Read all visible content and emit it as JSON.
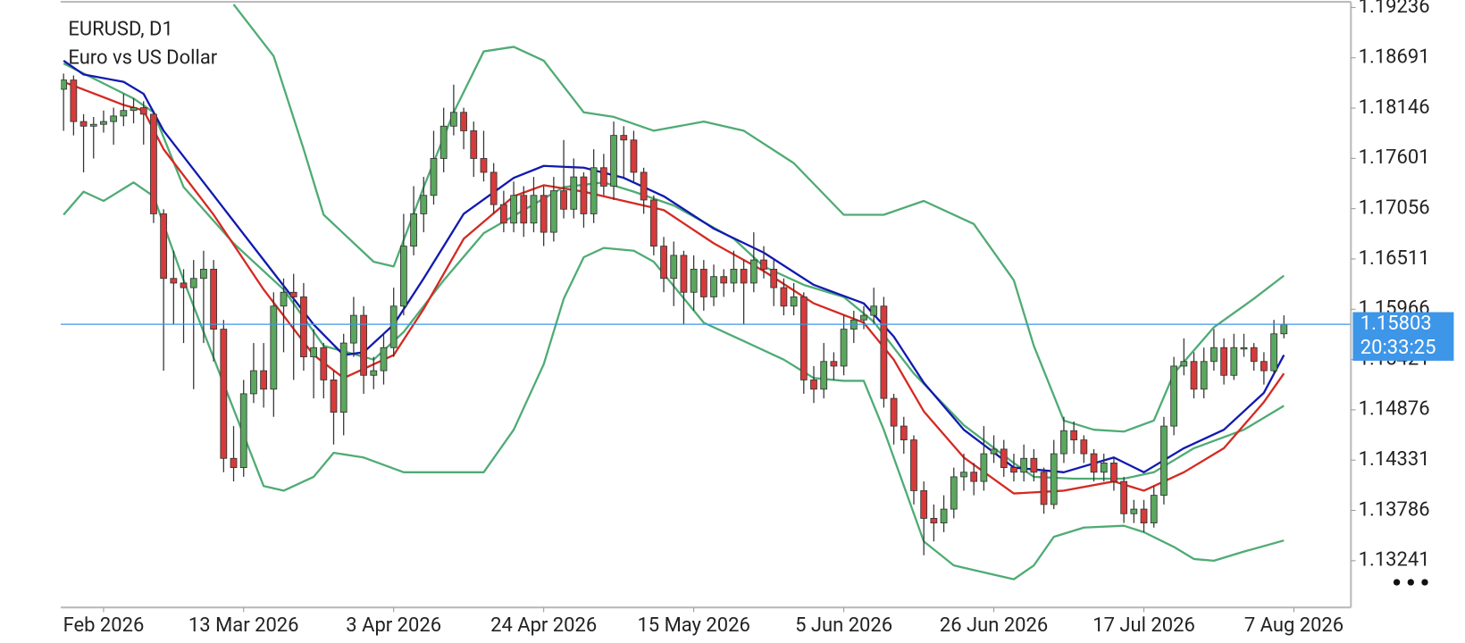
{
  "chart_data": {
    "type": "candlestick",
    "title": "EURUSD, D1",
    "subtitle": "Euro vs US Dollar",
    "up_color": "#5aa75e",
    "down_color": "#d63b3b",
    "wick_color": "#333333",
    "ylim": [
      1.12734,
      1.19297
    ],
    "yticks": [
      1.19236,
      1.18691,
      1.18146,
      1.17601,
      1.17056,
      1.16511,
      1.15966,
      1.15421,
      1.14876,
      1.14331,
      1.13786,
      1.13241
    ],
    "xlim": [
      -0.28,
      128.7
    ],
    "xticks": [
      {
        "value": 4,
        "label": "Feb 2026"
      },
      {
        "value": 18,
        "label": "13 Mar 2026"
      },
      {
        "value": 33,
        "label": "3 Apr 2026"
      },
      {
        "value": 48,
        "label": "24 Apr 2026"
      },
      {
        "value": 63,
        "label": "15 May 2026"
      },
      {
        "value": 78,
        "label": "5 Jun 2026"
      },
      {
        "value": 93,
        "label": "26 Jun 2026"
      },
      {
        "value": 108,
        "label": "17 Jul 2026"
      },
      {
        "value": 123,
        "label": "7 Aug 2026"
      }
    ],
    "last_price": 1.15803,
    "last_price_color": "#3d96e8",
    "timer": "20:33:25",
    "ohlc": [
      [
        1.1835,
        1.1852,
        1.179,
        1.1845
      ],
      [
        1.1845,
        1.185,
        1.1785,
        1.18
      ],
      [
        1.18,
        1.1808,
        1.1745,
        1.1795
      ],
      [
        1.1795,
        1.1805,
        1.176,
        1.1797
      ],
      [
        1.1797,
        1.1812,
        1.1788,
        1.18
      ],
      [
        1.18,
        1.1815,
        1.1775,
        1.1806
      ],
      [
        1.1806,
        1.183,
        1.1795,
        1.1812
      ],
      [
        1.1812,
        1.1825,
        1.1798,
        1.1815
      ],
      [
        1.1815,
        1.1822,
        1.1775,
        1.1808
      ],
      [
        1.1808,
        1.1812,
        1.169,
        1.17
      ],
      [
        1.17,
        1.1705,
        1.153,
        1.163
      ],
      [
        1.163,
        1.166,
        1.158,
        1.1625
      ],
      [
        1.1625,
        1.164,
        1.156,
        1.162
      ],
      [
        1.162,
        1.165,
        1.151,
        1.163
      ],
      [
        1.163,
        1.166,
        1.156,
        1.164
      ],
      [
        1.164,
        1.165,
        1.154,
        1.1575
      ],
      [
        1.1575,
        1.1585,
        1.142,
        1.1435
      ],
      [
        1.1435,
        1.147,
        1.141,
        1.1425
      ],
      [
        1.1425,
        1.152,
        1.1415,
        1.1505
      ],
      [
        1.1505,
        1.156,
        1.1495,
        1.153
      ],
      [
        1.153,
        1.156,
        1.149,
        1.151
      ],
      [
        1.151,
        1.1615,
        1.148,
        1.16
      ],
      [
        1.16,
        1.163,
        1.155,
        1.1615
      ],
      [
        1.1615,
        1.1635,
        1.152,
        1.161
      ],
      [
        1.161,
        1.1625,
        1.153,
        1.1545
      ],
      [
        1.1545,
        1.1575,
        1.15,
        1.1555
      ],
      [
        1.1555,
        1.156,
        1.15,
        1.152
      ],
      [
        1.152,
        1.153,
        1.145,
        1.1485
      ],
      [
        1.1485,
        1.157,
        1.146,
        1.156
      ],
      [
        1.156,
        1.161,
        1.1545,
        1.159
      ],
      [
        1.159,
        1.16,
        1.1505,
        1.1525
      ],
      [
        1.1525,
        1.1545,
        1.151,
        1.153
      ],
      [
        1.153,
        1.157,
        1.1515,
        1.1555
      ],
      [
        1.1555,
        1.162,
        1.1545,
        1.16
      ],
      [
        1.16,
        1.17,
        1.159,
        1.1665
      ],
      [
        1.1665,
        1.173,
        1.1655,
        1.17
      ],
      [
        1.17,
        1.174,
        1.168,
        1.172
      ],
      [
        1.172,
        1.179,
        1.171,
        1.176
      ],
      [
        1.176,
        1.1815,
        1.1745,
        1.1795
      ],
      [
        1.1795,
        1.184,
        1.1785,
        1.181
      ],
      [
        1.181,
        1.1815,
        1.177,
        1.179
      ],
      [
        1.179,
        1.18,
        1.174,
        1.176
      ],
      [
        1.176,
        1.179,
        1.1735,
        1.1745
      ],
      [
        1.1745,
        1.1755,
        1.17,
        1.171
      ],
      [
        1.171,
        1.1725,
        1.168,
        1.169
      ],
      [
        1.169,
        1.1735,
        1.168,
        1.172
      ],
      [
        1.172,
        1.173,
        1.1675,
        1.169
      ],
      [
        1.169,
        1.174,
        1.168,
        1.172
      ],
      [
        1.172,
        1.173,
        1.1665,
        1.168
      ],
      [
        1.168,
        1.174,
        1.167,
        1.1725
      ],
      [
        1.1725,
        1.178,
        1.1695,
        1.1705
      ],
      [
        1.1705,
        1.176,
        1.1695,
        1.174
      ],
      [
        1.174,
        1.1745,
        1.1685,
        1.17
      ],
      [
        1.17,
        1.177,
        1.169,
        1.175
      ],
      [
        1.175,
        1.1765,
        1.172,
        1.173
      ],
      [
        1.173,
        1.18,
        1.1715,
        1.1785
      ],
      [
        1.1785,
        1.1795,
        1.174,
        1.178
      ],
      [
        1.178,
        1.179,
        1.1735,
        1.1745
      ],
      [
        1.1745,
        1.175,
        1.17,
        1.1715
      ],
      [
        1.1715,
        1.172,
        1.1655,
        1.1665
      ],
      [
        1.1665,
        1.1675,
        1.1615,
        1.163
      ],
      [
        1.163,
        1.167,
        1.16,
        1.1655
      ],
      [
        1.1655,
        1.166,
        1.158,
        1.1615
      ],
      [
        1.1615,
        1.1655,
        1.1595,
        1.164
      ],
      [
        1.164,
        1.165,
        1.1595,
        1.161
      ],
      [
        1.161,
        1.1645,
        1.16,
        1.1632
      ],
      [
        1.1632,
        1.164,
        1.161,
        1.1625
      ],
      [
        1.1625,
        1.166,
        1.1615,
        1.164
      ],
      [
        1.164,
        1.165,
        1.158,
        1.1625
      ],
      [
        1.1625,
        1.168,
        1.1615,
        1.165
      ],
      [
        1.165,
        1.1665,
        1.163,
        1.164
      ],
      [
        1.164,
        1.165,
        1.16,
        1.162
      ],
      [
        1.162,
        1.163,
        1.159,
        1.16
      ],
      [
        1.16,
        1.1625,
        1.159,
        1.161
      ],
      [
        1.161,
        1.1615,
        1.1505,
        1.152
      ],
      [
        1.152,
        1.1535,
        1.1495,
        1.151
      ],
      [
        1.151,
        1.156,
        1.15,
        1.154
      ],
      [
        1.154,
        1.155,
        1.152,
        1.1535
      ],
      [
        1.1535,
        1.159,
        1.1525,
        1.1575
      ],
      [
        1.1575,
        1.1595,
        1.156,
        1.1585
      ],
      [
        1.1585,
        1.16,
        1.1575,
        1.159
      ],
      [
        1.159,
        1.162,
        1.158,
        1.16
      ],
      [
        1.16,
        1.161,
        1.149,
        1.15
      ],
      [
        1.15,
        1.1505,
        1.145,
        1.147
      ],
      [
        1.147,
        1.148,
        1.144,
        1.1455
      ],
      [
        1.1455,
        1.146,
        1.1385,
        1.14
      ],
      [
        1.14,
        1.141,
        1.133,
        1.137
      ],
      [
        1.137,
        1.1385,
        1.1345,
        1.1365
      ],
      [
        1.1365,
        1.1395,
        1.1355,
        1.138
      ],
      [
        1.138,
        1.1425,
        1.137,
        1.1415
      ],
      [
        1.1415,
        1.144,
        1.14,
        1.142
      ],
      [
        1.142,
        1.143,
        1.1395,
        1.141
      ],
      [
        1.141,
        1.147,
        1.14,
        1.144
      ],
      [
        1.144,
        1.146,
        1.143,
        1.1445
      ],
      [
        1.1445,
        1.1455,
        1.1415,
        1.1425
      ],
      [
        1.1425,
        1.144,
        1.141,
        1.142
      ],
      [
        1.142,
        1.145,
        1.141,
        1.1435
      ],
      [
        1.1435,
        1.1445,
        1.141,
        1.142
      ],
      [
        1.142,
        1.1425,
        1.1375,
        1.1385
      ],
      [
        1.1385,
        1.1455,
        1.138,
        1.144
      ],
      [
        1.144,
        1.148,
        1.143,
        1.1465
      ],
      [
        1.1465,
        1.1475,
        1.144,
        1.1455
      ],
      [
        1.1455,
        1.146,
        1.143,
        1.144
      ],
      [
        1.144,
        1.1445,
        1.141,
        1.142
      ],
      [
        1.142,
        1.144,
        1.141,
        1.143
      ],
      [
        1.143,
        1.1435,
        1.14,
        1.141
      ],
      [
        1.141,
        1.1415,
        1.1365,
        1.1375
      ],
      [
        1.1375,
        1.139,
        1.1365,
        1.138
      ],
      [
        1.138,
        1.139,
        1.1355,
        1.1365
      ],
      [
        1.1365,
        1.1405,
        1.136,
        1.1395
      ],
      [
        1.1395,
        1.148,
        1.1385,
        1.147
      ],
      [
        1.147,
        1.1545,
        1.146,
        1.1535
      ],
      [
        1.1535,
        1.1565,
        1.1525,
        1.154
      ],
      [
        1.154,
        1.155,
        1.15,
        1.151
      ],
      [
        1.151,
        1.1555,
        1.15,
        1.154
      ],
      [
        1.154,
        1.1575,
        1.153,
        1.1555
      ],
      [
        1.1555,
        1.1565,
        1.1515,
        1.1525
      ],
      [
        1.1525,
        1.157,
        1.152,
        1.1555
      ],
      [
        1.1555,
        1.157,
        1.1545,
        1.1555
      ],
      [
        1.1555,
        1.156,
        1.153,
        1.154
      ],
      [
        1.154,
        1.155,
        1.1515,
        1.153
      ],
      [
        1.153,
        1.1585,
        1.1525,
        1.157
      ],
      [
        1.157,
        1.159,
        1.1565,
        1.158
      ]
    ],
    "lines": [
      {
        "color": "#4fab74",
        "x": [
          17,
          21,
          24,
          26,
          31,
          33,
          36,
          39,
          42,
          45,
          48,
          52,
          55,
          59,
          64,
          68,
          73,
          78,
          82,
          86,
          91,
          95,
          97,
          100,
          103,
          106,
          109,
          111,
          115,
          119,
          122
        ],
        "values": [
          1.1927,
          1.1871,
          1.177,
          1.1699,
          1.1648,
          1.1643,
          1.1729,
          1.181,
          1.1876,
          1.1881,
          1.1866,
          1.181,
          1.1805,
          1.179,
          1.18,
          1.179,
          1.1755,
          1.1699,
          1.1699,
          1.1714,
          1.1689,
          1.1628,
          1.1557,
          1.1476,
          1.1466,
          1.1464,
          1.1476,
          1.1527,
          1.1577,
          1.1608,
          1.1633
        ]
      },
      {
        "color": "#4fab74",
        "x": [
          0,
          7,
          9,
          12,
          17,
          22,
          26,
          31,
          34,
          38,
          42,
          46,
          50,
          54,
          57,
          61,
          67,
          70,
          74,
          78,
          81,
          85,
          90,
          95,
          97,
          101,
          106,
          109,
          113,
          118,
          122
        ],
        "values": [
          1.1863,
          1.1825,
          1.181,
          1.1729,
          1.1668,
          1.1618,
          1.1557,
          1.1542,
          1.1572,
          1.1628,
          1.1679,
          1.1704,
          1.1729,
          1.1734,
          1.1724,
          1.1709,
          1.1673,
          1.1643,
          1.1623,
          1.161,
          1.1583,
          1.1527,
          1.1471,
          1.143,
          1.1415,
          1.1413,
          1.1413,
          1.142,
          1.1446,
          1.1466,
          1.1492
        ]
      },
      {
        "color": "#4fab74",
        "x": [
          0,
          2,
          4,
          7,
          9,
          12,
          16,
          20,
          22,
          25,
          27,
          30,
          34,
          38,
          42,
          45,
          48,
          50,
          52,
          54,
          57,
          59,
          64,
          68,
          72,
          75,
          78,
          80,
          82,
          86,
          89,
          93,
          95,
          97,
          99,
          102,
          106,
          108,
          111,
          113,
          115,
          118,
          122
        ],
        "values": [
          1.1699,
          1.1724,
          1.1714,
          1.1734,
          1.1719,
          1.1628,
          1.1516,
          1.1405,
          1.14,
          1.1415,
          1.1441,
          1.1436,
          1.142,
          1.142,
          1.142,
          1.1466,
          1.1537,
          1.1608,
          1.1653,
          1.1663,
          1.166,
          1.1648,
          1.1582,
          1.1562,
          1.1542,
          1.1522,
          1.1519,
          1.1519,
          1.1466,
          1.1345,
          1.1319,
          1.1309,
          1.1304,
          1.1319,
          1.135,
          1.136,
          1.1362,
          1.1355,
          1.1339,
          1.1326,
          1.1324,
          1.1334,
          1.1346
        ]
      },
      {
        "color": "#1019b0",
        "x": [
          0,
          2,
          6,
          8,
          10,
          15,
          20,
          25,
          28,
          30,
          33,
          36,
          40,
          45,
          48,
          52,
          56,
          60,
          65,
          70,
          75,
          80,
          83,
          86,
          90,
          95,
          100,
          105,
          108,
          112,
          116,
          120,
          122
        ],
        "values": [
          1.1866,
          1.1851,
          1.1843,
          1.183,
          1.179,
          1.172,
          1.165,
          1.158,
          1.1547,
          1.155,
          1.158,
          1.163,
          1.17,
          1.1739,
          1.1752,
          1.175,
          1.1739,
          1.1719,
          1.1684,
          1.1658,
          1.1623,
          1.1603,
          1.1567,
          1.1517,
          1.1466,
          1.1425,
          1.142,
          1.1436,
          1.142,
          1.1446,
          1.1466,
          1.1506,
          1.1547
        ]
      },
      {
        "color": "#d42a22",
        "x": [
          0,
          6,
          8,
          10,
          15,
          20,
          25,
          28,
          30,
          33,
          36,
          40,
          45,
          48,
          52,
          56,
          60,
          65,
          70,
          75,
          80,
          83,
          86,
          90,
          95,
          100,
          105,
          108,
          112,
          116,
          120,
          122
        ],
        "values": [
          1.1843,
          1.1818,
          1.1812,
          1.177,
          1.1699,
          1.1618,
          1.1547,
          1.1522,
          1.1532,
          1.1547,
          1.1597,
          1.1673,
          1.1719,
          1.1731,
          1.1724,
          1.1714,
          1.1704,
          1.1668,
          1.1638,
          1.1603,
          1.1582,
          1.1542,
          1.1486,
          1.1436,
          1.1397,
          1.14,
          1.141,
          1.14,
          1.142,
          1.1446,
          1.1496,
          1.1527
        ]
      }
    ]
  }
}
